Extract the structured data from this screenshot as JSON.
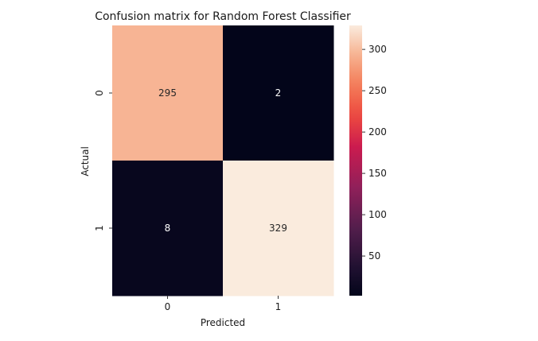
{
  "chart_data": {
    "type": "heatmap",
    "title": "Confusion matrix for Random Forest Classifier",
    "xlabel": "Predicted",
    "ylabel": "Actual",
    "x_categories": [
      "0",
      "1"
    ],
    "y_categories": [
      "0",
      "1"
    ],
    "values": [
      [
        295,
        2
      ],
      [
        8,
        329
      ]
    ],
    "colormap": "rocket",
    "colorbar": {
      "range": [
        2,
        329
      ],
      "ticks": [
        50,
        100,
        150,
        200,
        250,
        300
      ],
      "tick_labels": [
        "50",
        "100",
        "150",
        "200",
        "250",
        "300"
      ]
    },
    "annotate": true,
    "grid": false
  }
}
